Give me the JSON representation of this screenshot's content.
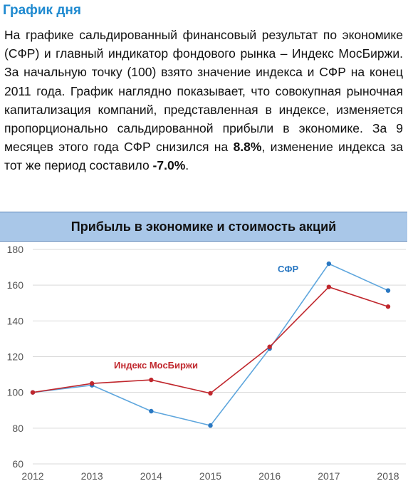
{
  "header": {
    "title": "График дня"
  },
  "paragraph": {
    "part1": "На графике сальдированный финансовый результат по экономике (СФР) и главный индикатор фондового рынка – Индекс МосБиржи. За начальную точку (100) взято значение индекса и СФР на конец 2011 года. График наглядно показывает, что совокупная рыночная капитализация компаний, представленная в индексе, изменяется пропорционально сальдированной прибыли в экономике. За 9 месяцев этого года СФР снизился на ",
    "sfr_change": "8.8%",
    "part2": ", изменение индекса за тот же период составило ",
    "index_change": "-7.0%",
    "part3": "."
  },
  "colors": {
    "sfr": "#5ea6dd",
    "sfr_marker": "#2a78c2",
    "index": "#c0272d",
    "grid": "#d9d9d9",
    "header_bg": "#a9c7e8"
  },
  "chart_data": {
    "type": "line",
    "title": "Прибыль в экономике и стоимость акций",
    "x": [
      2012,
      2013,
      2014,
      2015,
      2016,
      2017,
      2018
    ],
    "ylim": [
      60,
      180
    ],
    "yticks": [
      60,
      80,
      100,
      120,
      140,
      160,
      180
    ],
    "grid": "horizontal",
    "series": [
      {
        "name": "СФР",
        "values": [
          100,
          104,
          89.5,
          81.5,
          124.5,
          172,
          157
        ]
      },
      {
        "name": "Индекс МосБиржи",
        "values": [
          100,
          105,
          107,
          99.5,
          125.5,
          159,
          148
        ]
      }
    ]
  }
}
